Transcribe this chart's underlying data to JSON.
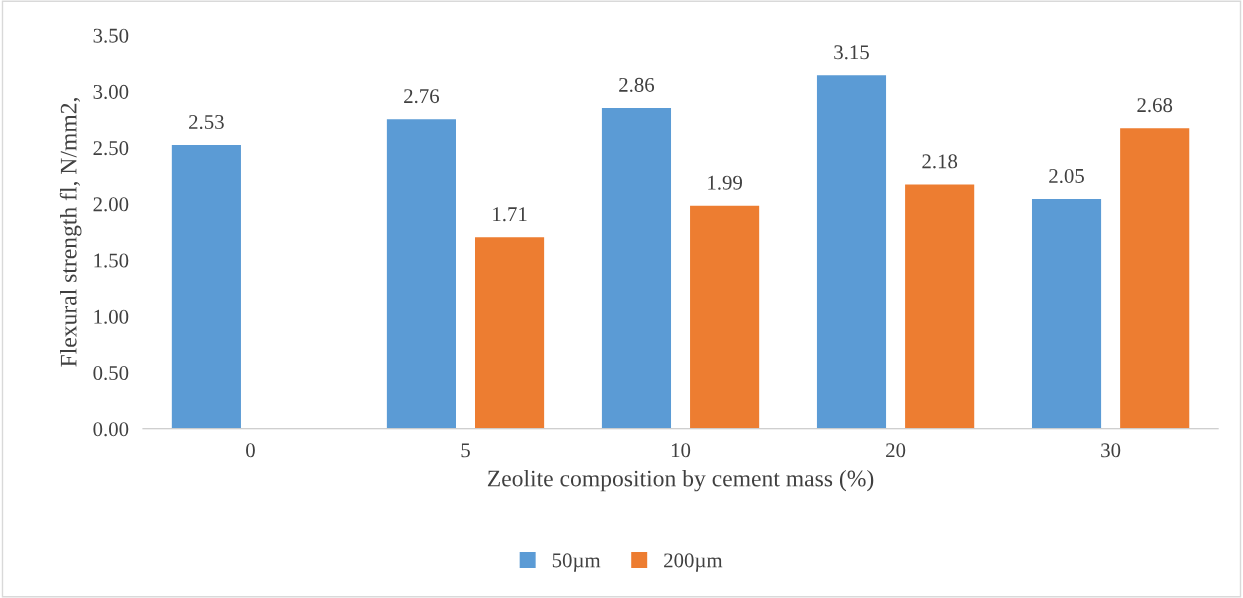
{
  "chart_data": {
    "type": "bar",
    "xlabel": "Zeolite composition by cement mass (%)",
    "ylabel": "Flexural strength fl, N/mm2,",
    "categories": [
      "0",
      "5",
      "10",
      "20",
      "30"
    ],
    "series": [
      {
        "name": "50µm",
        "color": "#5b9bd5",
        "values": [
          2.53,
          2.76,
          2.86,
          3.15,
          2.05
        ]
      },
      {
        "name": "200µm",
        "color": "#ed7d31",
        "values": [
          null,
          1.71,
          1.99,
          2.18,
          2.68
        ]
      }
    ],
    "ylim": [
      0,
      3.5
    ],
    "yticks": [
      {
        "value": 0,
        "label": "0.00"
      },
      {
        "value": 0.5,
        "label": "0.50"
      },
      {
        "value": 1,
        "label": "1.00"
      },
      {
        "value": 1.5,
        "label": "1.50"
      },
      {
        "value": 2,
        "label": "2.00"
      },
      {
        "value": 2.5,
        "label": "2.50"
      },
      {
        "value": 3,
        "label": "3.00"
      },
      {
        "value": 3.5,
        "label": "3.50"
      }
    ],
    "data_labels": true,
    "grid": false,
    "legend": "bottom"
  }
}
